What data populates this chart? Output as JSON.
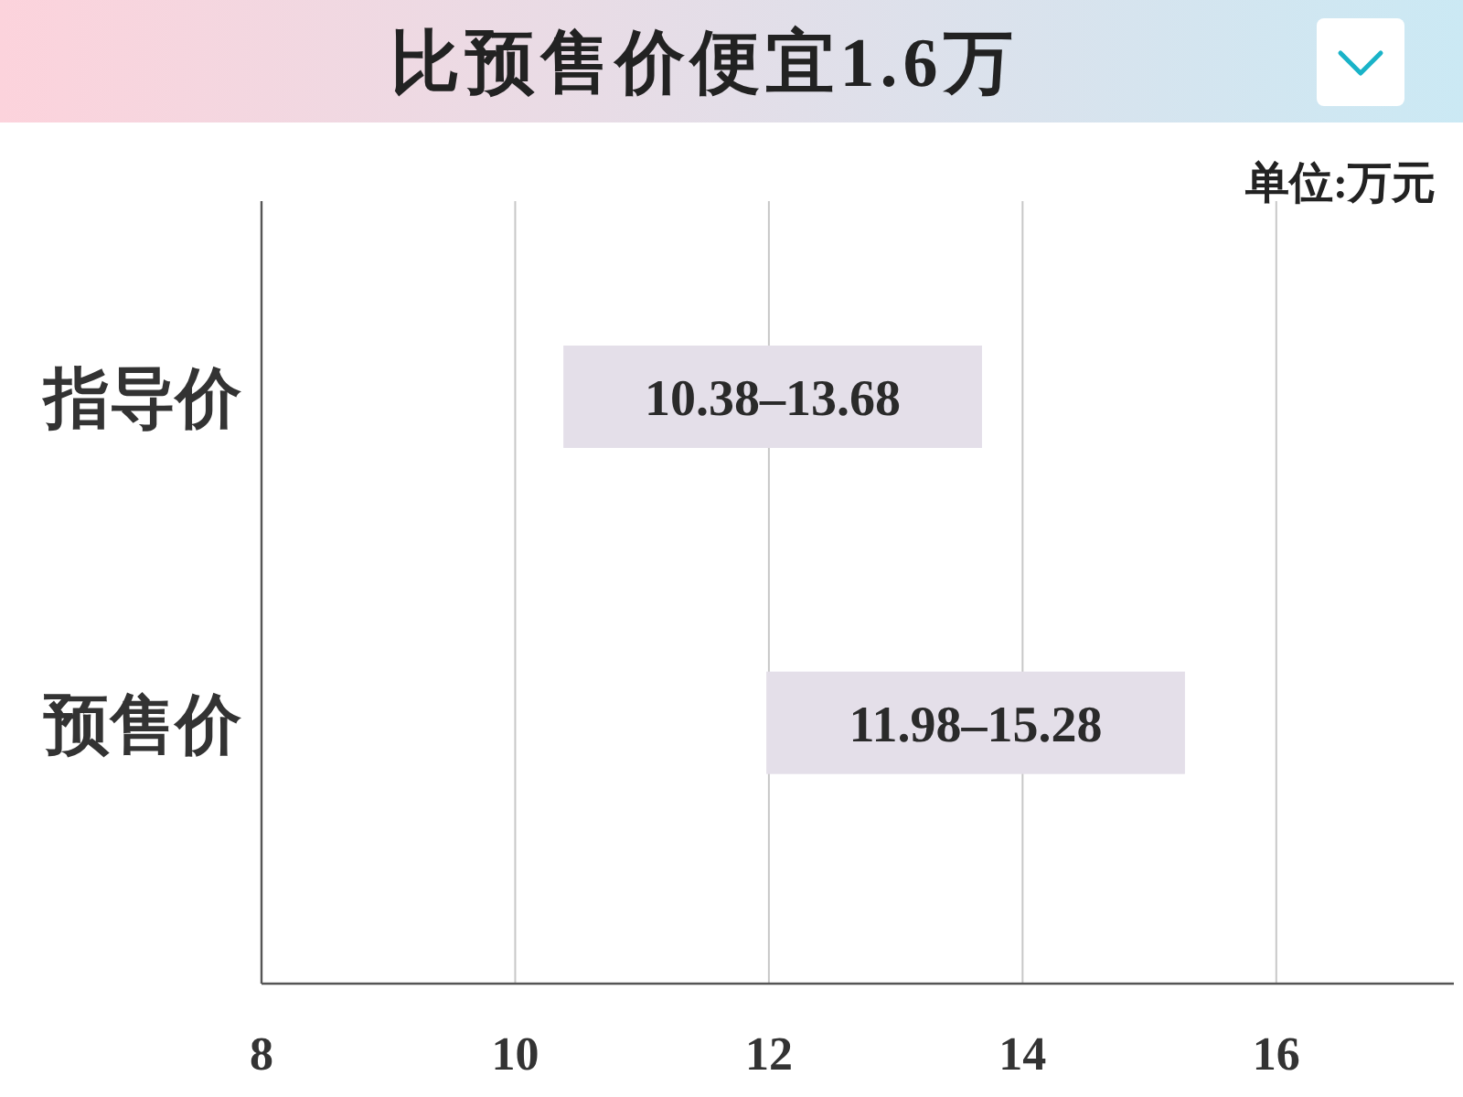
{
  "chart_data": {
    "type": "bar",
    "orientation": "horizontal",
    "title": "比预售价便宜1.6万",
    "annotations": [
      "单位:万元"
    ],
    "categories": [
      "指导价",
      "预售价"
    ],
    "base": [
      10.38,
      11.98
    ],
    "values": [
      3.3,
      3.3
    ],
    "value_labels": [
      "10.38–13.68",
      "11.98–15.28"
    ],
    "color": "#e4dfe9",
    "xlim": [
      8,
      17.4
    ],
    "xticks": [
      8,
      10,
      12,
      14,
      16
    ],
    "grid": "x"
  }
}
